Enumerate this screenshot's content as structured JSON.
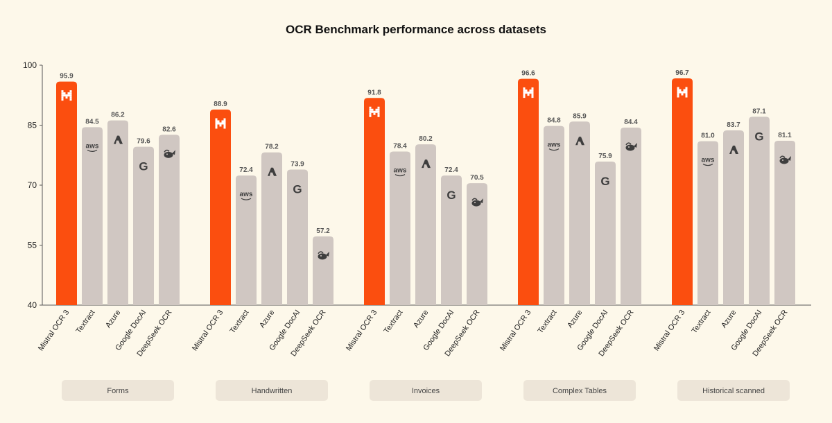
{
  "chart_data": {
    "type": "bar",
    "title": "OCR Benchmark performance across datasets",
    "ylim": [
      40,
      100
    ],
    "yticks": [
      40,
      55,
      70,
      85,
      100
    ],
    "grid": false,
    "legend": "none",
    "colors": {
      "highlight": "#fb4e0f",
      "default": "#d0c7c2",
      "background": "#fdf8ea"
    },
    "groups": [
      {
        "label": "Forms",
        "bars": [
          {
            "name": "Mistral OCR 3",
            "value": 95.9,
            "label": "95.9",
            "icon": "mistral-icon"
          },
          {
            "name": "Textract",
            "value": 84.5,
            "label": "84.5",
            "icon": "aws-icon"
          },
          {
            "name": "Azure",
            "value": 86.2,
            "label": "86.2",
            "icon": "azure-icon"
          },
          {
            "name": "Google DocAI",
            "value": 79.6,
            "label": "79.6",
            "icon": "google-icon"
          },
          {
            "name": "DeepSeek OCR",
            "value": 82.6,
            "label": "82.6",
            "icon": "deepseek-icon"
          }
        ]
      },
      {
        "label": "Handwritten",
        "bars": [
          {
            "name": "Mistral OCR 3",
            "value": 88.9,
            "label": "88.9",
            "icon": "mistral-icon"
          },
          {
            "name": "Textract",
            "value": 72.4,
            "label": "72.4",
            "icon": "aws-icon"
          },
          {
            "name": "Azure",
            "value": 78.2,
            "label": "78.2",
            "icon": "azure-icon"
          },
          {
            "name": "Google DocAI",
            "value": 73.9,
            "label": "73.9",
            "icon": "google-icon"
          },
          {
            "name": "DeepSeek OCR",
            "value": 57.2,
            "label": "57.2",
            "icon": "deepseek-icon"
          }
        ]
      },
      {
        "label": "Invoices",
        "bars": [
          {
            "name": "Mistral OCR 3",
            "value": 91.8,
            "label": "91.8",
            "icon": "mistral-icon"
          },
          {
            "name": "Textract",
            "value": 78.4,
            "label": "78.4",
            "icon": "aws-icon"
          },
          {
            "name": "Azure",
            "value": 80.2,
            "label": "80.2",
            "icon": "azure-icon"
          },
          {
            "name": "Google DocAI",
            "value": 72.4,
            "label": "72.4",
            "icon": "google-icon"
          },
          {
            "name": "DeepSeek OCR",
            "value": 70.5,
            "label": "70.5",
            "icon": "deepseek-icon"
          }
        ]
      },
      {
        "label": "Complex Tables",
        "bars": [
          {
            "name": "Mistral OCR 3",
            "value": 96.6,
            "label": "96.6",
            "icon": "mistral-icon"
          },
          {
            "name": "Textract",
            "value": 84.8,
            "label": "84.8",
            "icon": "aws-icon"
          },
          {
            "name": "Azure",
            "value": 85.9,
            "label": "85.9",
            "icon": "azure-icon"
          },
          {
            "name": "Google DocAI",
            "value": 75.9,
            "label": "75.9",
            "icon": "google-icon"
          },
          {
            "name": "DeepSeek OCR",
            "value": 84.4,
            "label": "84.4",
            "icon": "deepseek-icon"
          }
        ]
      },
      {
        "label": "Historical scanned",
        "bars": [
          {
            "name": "Mistral OCR 3",
            "value": 96.7,
            "label": "96.7",
            "icon": "mistral-icon"
          },
          {
            "name": "Textract",
            "value": 81.0,
            "label": "81.0",
            "icon": "aws-icon"
          },
          {
            "name": "Azure",
            "value": 83.7,
            "label": "83.7",
            "icon": "azure-icon"
          },
          {
            "name": "Google DocAI",
            "value": 87.1,
            "label": "87.1",
            "icon": "google-icon"
          },
          {
            "name": "DeepSeek OCR",
            "value": 81.1,
            "label": "81.1",
            "icon": "deepseek-icon"
          }
        ]
      }
    ]
  }
}
